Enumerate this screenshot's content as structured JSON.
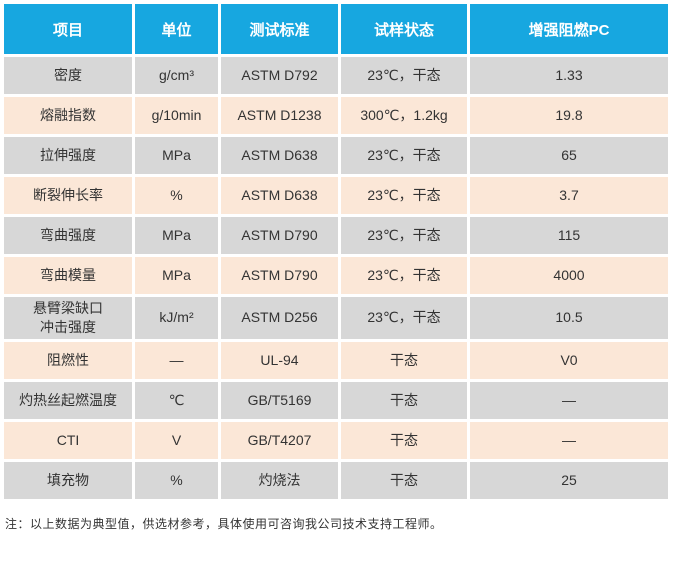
{
  "colors": {
    "header_bg": "#17a7e0",
    "row_gray": "#d7d7d7",
    "row_peach": "#fbe7d7",
    "text": "#333333",
    "header_text": "#ffffff"
  },
  "table": {
    "columns": [
      "项目",
      "单位",
      "测试标准",
      "试样状态",
      "增强阻燃PC"
    ],
    "rows": [
      {
        "item": "密度",
        "unit": "g/cm³",
        "standard": "ASTM D792",
        "condition": "23℃，干态",
        "value": "1.33"
      },
      {
        "item": "熔融指数",
        "unit": "g/10min",
        "standard": "ASTM D1238",
        "condition": "300℃，1.2kg",
        "value": "19.8"
      },
      {
        "item": "拉伸强度",
        "unit": "MPa",
        "standard": "ASTM D638",
        "condition": "23℃，干态",
        "value": "65"
      },
      {
        "item": "断裂伸长率",
        "unit": "%",
        "standard": "ASTM D638",
        "condition": "23℃，干态",
        "value": "3.7"
      },
      {
        "item": "弯曲强度",
        "unit": "MPa",
        "standard": "ASTM D790",
        "condition": "23℃，干态",
        "value": "115"
      },
      {
        "item": "弯曲模量",
        "unit": "MPa",
        "standard": "ASTM D790",
        "condition": "23℃，干态",
        "value": "4000"
      },
      {
        "item": "悬臂梁缺口\n冲击强度",
        "unit": "kJ/m²",
        "standard": "ASTM D256",
        "condition": "23℃，干态",
        "value": "10.5"
      },
      {
        "item": "阻燃性",
        "unit": "—",
        "standard": "UL-94",
        "condition": "干态",
        "value": "V0"
      },
      {
        "item": "灼热丝起燃温度",
        "unit": "℃",
        "standard": "GB/T5169",
        "condition": "干态",
        "value": "—"
      },
      {
        "item": "CTI",
        "unit": "V",
        "standard": "GB/T4207",
        "condition": "干态",
        "value": "—"
      },
      {
        "item": "填充物",
        "unit": "%",
        "standard": "灼烧法",
        "condition": "干态",
        "value": "25"
      }
    ]
  },
  "note": "注：以上数据为典型值，供选材参考，具体使用可咨询我公司技术支持工程师。"
}
